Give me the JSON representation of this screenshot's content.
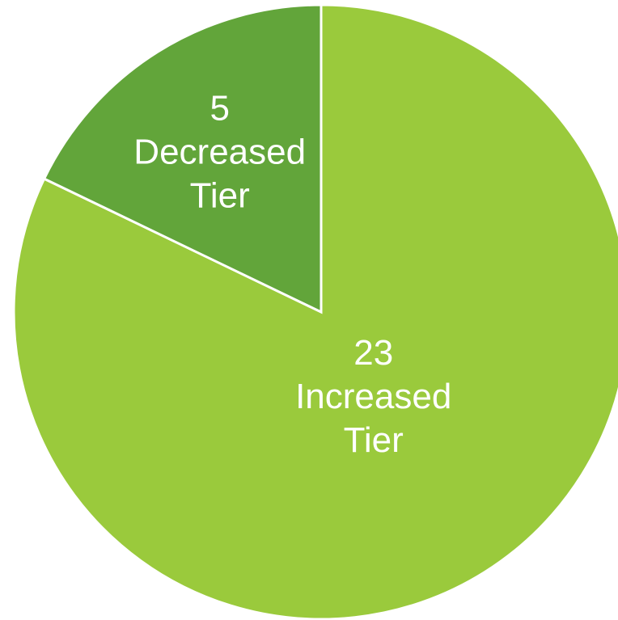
{
  "chart_data": {
    "type": "pie",
    "title": "",
    "slices": [
      {
        "value": 23,
        "value_label": "23",
        "label_lines": [
          "Increased",
          "Tier"
        ],
        "color": "#9ACA3C"
      },
      {
        "value": 5,
        "value_label": "5",
        "label_lines": [
          "Decreased",
          "Tier"
        ],
        "color": "#62A53A"
      }
    ],
    "start_angle_deg": 0,
    "direction": "clockwise",
    "legend": "none",
    "background": "#FFFFFF"
  }
}
